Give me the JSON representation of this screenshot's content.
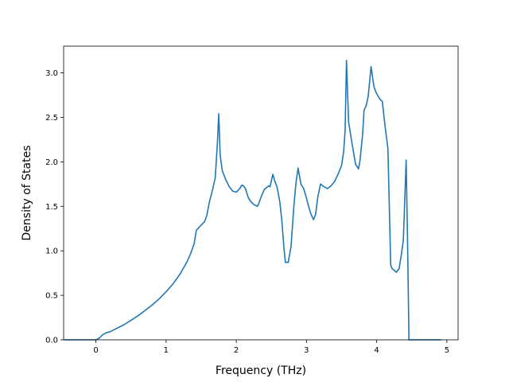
{
  "chart_data": {
    "type": "line",
    "title": "",
    "xlabel": "Frequency (THz)",
    "ylabel": "Density of States",
    "xlim": [
      -0.46,
      5.16
    ],
    "ylim": [
      0.0,
      3.3
    ],
    "xticks": [
      0,
      1,
      2,
      3,
      4,
      5
    ],
    "xtick_labels": [
      "0",
      "1",
      "2",
      "3",
      "4",
      "5"
    ],
    "yticks": [
      0.0,
      0.5,
      1.0,
      1.5,
      2.0,
      2.5,
      3.0
    ],
    "ytick_labels": [
      "0.0",
      "0.5",
      "1.0",
      "1.5",
      "2.0",
      "2.5",
      "3.0"
    ],
    "grid": false,
    "legend": "none",
    "colors": {
      "line": "#1f77b4",
      "axes": "#000000",
      "background": "#ffffff"
    },
    "series": [
      {
        "x": [
          -0.45,
          -0.2,
          0.0,
          0.05,
          0.1,
          0.15,
          0.2,
          0.3,
          0.4,
          0.5,
          0.6,
          0.7,
          0.8,
          0.9,
          1.0,
          1.1,
          1.2,
          1.3,
          1.35,
          1.4,
          1.43,
          1.5,
          1.55,
          1.58,
          1.62,
          1.66,
          1.7,
          1.73,
          1.75,
          1.77,
          1.8,
          1.85,
          1.9,
          1.95,
          2.0,
          2.05,
          2.08,
          2.1,
          2.13,
          2.17,
          2.2,
          2.25,
          2.3,
          2.32,
          2.35,
          2.4,
          2.43,
          2.46,
          2.48,
          2.52,
          2.55,
          2.58,
          2.62,
          2.65,
          2.68,
          2.7,
          2.74,
          2.78,
          2.82,
          2.85,
          2.88,
          2.92,
          2.96,
          3.0,
          3.03,
          3.06,
          3.1,
          3.13,
          3.16,
          3.2,
          3.25,
          3.3,
          3.35,
          3.4,
          3.45,
          3.5,
          3.53,
          3.55,
          3.57,
          3.6,
          3.65,
          3.7,
          3.72,
          3.74,
          3.76,
          3.78,
          3.8,
          3.82,
          3.85,
          3.88,
          3.92,
          3.96,
          3.99,
          4.02,
          4.05,
          4.08,
          4.12,
          4.16,
          4.2,
          4.22,
          4.25,
          4.28,
          4.32,
          4.35,
          4.38,
          4.42,
          4.44,
          4.46,
          4.49,
          4.5,
          4.55,
          4.7,
          4.92
        ],
        "y": [
          0.0,
          0.0,
          0.0,
          0.02,
          0.06,
          0.08,
          0.09,
          0.13,
          0.17,
          0.22,
          0.27,
          0.33,
          0.39,
          0.46,
          0.54,
          0.63,
          0.74,
          0.88,
          0.97,
          1.08,
          1.23,
          1.29,
          1.33,
          1.4,
          1.56,
          1.68,
          1.82,
          2.2,
          2.54,
          2.08,
          1.9,
          1.8,
          1.72,
          1.67,
          1.66,
          1.7,
          1.74,
          1.73,
          1.7,
          1.6,
          1.56,
          1.52,
          1.5,
          1.53,
          1.6,
          1.69,
          1.71,
          1.73,
          1.72,
          1.86,
          1.78,
          1.72,
          1.55,
          1.33,
          1.02,
          0.87,
          0.87,
          1.05,
          1.5,
          1.76,
          1.93,
          1.75,
          1.7,
          1.59,
          1.5,
          1.42,
          1.35,
          1.41,
          1.6,
          1.75,
          1.72,
          1.7,
          1.73,
          1.78,
          1.86,
          1.96,
          2.12,
          2.35,
          3.14,
          2.45,
          2.2,
          1.97,
          1.95,
          1.92,
          2.0,
          2.15,
          2.31,
          2.58,
          2.63,
          2.74,
          3.07,
          2.85,
          2.78,
          2.74,
          2.7,
          2.68,
          2.4,
          2.15,
          0.84,
          0.8,
          0.78,
          0.76,
          0.8,
          0.95,
          1.12,
          2.02,
          1.1,
          0.0,
          0.0,
          0.0,
          0.0,
          0.0,
          0.0
        ]
      }
    ]
  }
}
